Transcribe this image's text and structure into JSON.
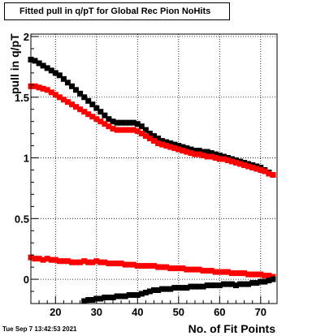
{
  "header": {
    "title": "Fitted pull in q/pT for Global Rec Pion NoHits"
  },
  "footer": {
    "timestamp": "Tue Sep  7 13:42:53 2021"
  },
  "chart_data": {
    "type": "scatter",
    "title": "Fitted pull in q/pT for Global Rec Pion NoHits",
    "xlabel": "No. of Fit Points",
    "ylabel": "pull in q/pT",
    "xlim": [
      14,
      74
    ],
    "ylim": [
      -0.2,
      2.02
    ],
    "xticks": [
      20,
      30,
      40,
      50,
      60,
      70
    ],
    "yticks": [
      0,
      0.5,
      1,
      1.5,
      2
    ],
    "ytick_labels": [
      "0",
      "0.5",
      "1",
      "1.5",
      "2"
    ],
    "grid": true,
    "colors": {
      "black": "#000000",
      "red": "#ff0000"
    },
    "series": [
      {
        "color": "#000000",
        "x": [
          14,
          15,
          16,
          17,
          18,
          19,
          20,
          21,
          22,
          23,
          24,
          25,
          26,
          27,
          28,
          29,
          30,
          31,
          32,
          33,
          34,
          35,
          36,
          37,
          38,
          39,
          40,
          41,
          42,
          43,
          44,
          45,
          46,
          47,
          48,
          49,
          50,
          51,
          52,
          53,
          54,
          55,
          56,
          57,
          58,
          59,
          60,
          61,
          62,
          63,
          64,
          65,
          66,
          67,
          68,
          69,
          70,
          71,
          72,
          73
        ],
        "values": [
          1.81,
          1.8,
          1.78,
          1.76,
          1.74,
          1.72,
          1.7,
          1.68,
          1.65,
          1.62,
          1.59,
          1.56,
          1.53,
          1.5,
          1.47,
          1.44,
          1.41,
          1.38,
          1.35,
          1.32,
          1.3,
          1.29,
          1.29,
          1.29,
          1.29,
          1.29,
          1.28,
          1.26,
          1.23,
          1.2,
          1.18,
          1.16,
          1.14,
          1.13,
          1.12,
          1.11,
          1.1,
          1.09,
          1.08,
          1.07,
          1.06,
          1.06,
          1.05,
          1.05,
          1.04,
          1.03,
          1.02,
          1.01,
          1.0,
          0.99,
          0.98,
          0.97,
          0.96,
          0.95,
          0.94,
          0.93,
          0.92,
          0.9,
          0.88,
          0.86
        ]
      },
      {
        "color": "#ff0000",
        "x": [
          14,
          15,
          16,
          17,
          18,
          19,
          20,
          21,
          22,
          23,
          24,
          25,
          26,
          27,
          28,
          29,
          30,
          31,
          32,
          33,
          34,
          35,
          36,
          37,
          38,
          39,
          40,
          41,
          42,
          43,
          44,
          45,
          46,
          47,
          48,
          49,
          50,
          51,
          52,
          53,
          54,
          55,
          56,
          57,
          58,
          59,
          60,
          61,
          62,
          63,
          64,
          65,
          66,
          67,
          68,
          69,
          70,
          71,
          72,
          73
        ],
        "values": [
          1.59,
          1.59,
          1.58,
          1.57,
          1.56,
          1.54,
          1.52,
          1.5,
          1.48,
          1.46,
          1.44,
          1.42,
          1.4,
          1.38,
          1.36,
          1.34,
          1.32,
          1.3,
          1.28,
          1.26,
          1.24,
          1.23,
          1.23,
          1.23,
          1.23,
          1.23,
          1.22,
          1.2,
          1.18,
          1.16,
          1.14,
          1.12,
          1.11,
          1.1,
          1.09,
          1.08,
          1.07,
          1.06,
          1.05,
          1.04,
          1.03,
          1.03,
          1.02,
          1.01,
          1.01,
          1.0,
          0.99,
          0.99,
          0.98,
          0.97,
          0.96,
          0.95,
          0.94,
          0.93,
          0.92,
          0.91,
          0.9,
          0.89,
          0.87,
          0.86
        ]
      },
      {
        "color": "#ff0000",
        "x": [
          14,
          15,
          16,
          17,
          18,
          19,
          20,
          21,
          22,
          23,
          24,
          25,
          26,
          27,
          28,
          29,
          30,
          31,
          32,
          33,
          34,
          35,
          36,
          37,
          38,
          39,
          40,
          41,
          42,
          43,
          44,
          45,
          46,
          47,
          48,
          49,
          50,
          51,
          52,
          53,
          54,
          55,
          56,
          57,
          58,
          59,
          60,
          61,
          62,
          63,
          64,
          65,
          66,
          67,
          68,
          69,
          70,
          71,
          72,
          73
        ],
        "values": [
          0.18,
          0.17,
          0.17,
          0.16,
          0.17,
          0.16,
          0.16,
          0.15,
          0.15,
          0.15,
          0.14,
          0.14,
          0.14,
          0.15,
          0.14,
          0.14,
          0.15,
          0.14,
          0.14,
          0.13,
          0.13,
          0.13,
          0.13,
          0.12,
          0.12,
          0.12,
          0.11,
          0.11,
          0.11,
          0.11,
          0.11,
          0.1,
          0.1,
          0.1,
          0.09,
          0.09,
          0.09,
          0.09,
          0.08,
          0.08,
          0.08,
          0.08,
          0.07,
          0.07,
          0.07,
          0.06,
          0.06,
          0.06,
          0.06,
          0.05,
          0.05,
          0.05,
          0.05,
          0.04,
          0.04,
          0.04,
          0.04,
          0.03,
          0.03,
          0.02
        ]
      },
      {
        "color": "#000000",
        "x": [
          27,
          28,
          29,
          30,
          31,
          32,
          33,
          34,
          35,
          36,
          37,
          38,
          39,
          40,
          41,
          42,
          43,
          44,
          45,
          46,
          47,
          48,
          49,
          50,
          51,
          52,
          53,
          54,
          55,
          56,
          57,
          58,
          59,
          60,
          61,
          62,
          63,
          64,
          65,
          66,
          67,
          68,
          69,
          70,
          71,
          72,
          73
        ],
        "values": [
          -0.18,
          -0.17,
          -0.17,
          -0.16,
          -0.16,
          -0.15,
          -0.15,
          -0.15,
          -0.14,
          -0.14,
          -0.14,
          -0.13,
          -0.13,
          -0.13,
          -0.12,
          -0.11,
          -0.1,
          -0.09,
          -0.09,
          -0.08,
          -0.08,
          -0.08,
          -0.07,
          -0.07,
          -0.07,
          -0.07,
          -0.06,
          -0.06,
          -0.06,
          -0.06,
          -0.05,
          -0.05,
          -0.05,
          -0.05,
          -0.04,
          -0.04,
          -0.04,
          -0.05,
          -0.04,
          -0.04,
          -0.04,
          -0.03,
          -0.03,
          -0.02,
          -0.02,
          -0.01,
          0.0
        ]
      }
    ]
  }
}
